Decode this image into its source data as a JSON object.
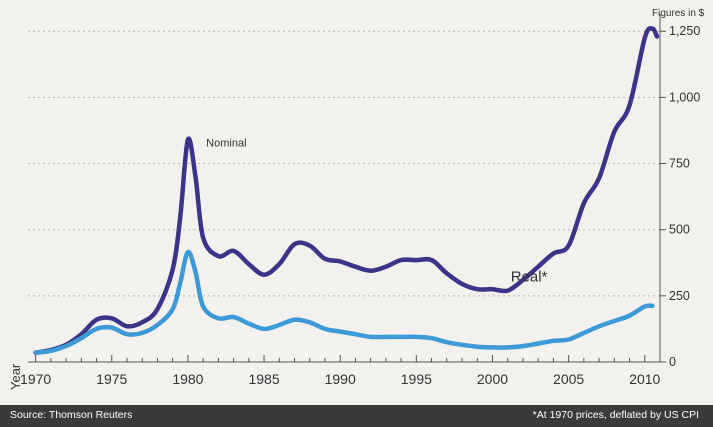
{
  "chart_data": {
    "type": "line",
    "unit_label": "Figures in $",
    "xlabel": "Year",
    "ylabel": "",
    "xlim": [
      1969.5,
      2011
    ],
    "ylim": [
      0,
      1300
    ],
    "x_ticks": [
      1970,
      1975,
      1980,
      1985,
      1990,
      1995,
      2000,
      2005,
      2010
    ],
    "y_ticks": [
      0,
      250,
      500,
      750,
      1000,
      1250
    ],
    "y_tick_labels": [
      "0",
      "250",
      "500",
      "750",
      "1,000",
      "1,250"
    ],
    "grid": "horizontal dotted",
    "series": [
      {
        "name": "Nominal",
        "color": "#3b3488",
        "points": [
          [
            1970,
            35
          ],
          [
            1971,
            45
          ],
          [
            1972,
            65
          ],
          [
            1973,
            105
          ],
          [
            1974,
            160
          ],
          [
            1975,
            165
          ],
          [
            1976,
            135
          ],
          [
            1977,
            150
          ],
          [
            1978,
            200
          ],
          [
            1979,
            350
          ],
          [
            1979.5,
            550
          ],
          [
            1980,
            840
          ],
          [
            1980.5,
            700
          ],
          [
            1981,
            470
          ],
          [
            1982,
            400
          ],
          [
            1983,
            420
          ],
          [
            1984,
            370
          ],
          [
            1985,
            330
          ],
          [
            1986,
            370
          ],
          [
            1987,
            445
          ],
          [
            1988,
            440
          ],
          [
            1989,
            390
          ],
          [
            1990,
            380
          ],
          [
            1991,
            360
          ],
          [
            1992,
            345
          ],
          [
            1993,
            360
          ],
          [
            1994,
            385
          ],
          [
            1995,
            385
          ],
          [
            1996,
            385
          ],
          [
            1997,
            335
          ],
          [
            1998,
            295
          ],
          [
            1999,
            275
          ],
          [
            2000,
            275
          ],
          [
            2001,
            270
          ],
          [
            2002,
            310
          ],
          [
            2003,
            360
          ],
          [
            2004,
            410
          ],
          [
            2005,
            440
          ],
          [
            2006,
            600
          ],
          [
            2007,
            695
          ],
          [
            2008,
            870
          ],
          [
            2009,
            970
          ],
          [
            2010,
            1225
          ],
          [
            2010.5,
            1260
          ],
          [
            2010.8,
            1230
          ]
        ]
      },
      {
        "name": "Real*",
        "color": "#3d9ad6",
        "points": [
          [
            1970,
            35
          ],
          [
            1971,
            42
          ],
          [
            1972,
            60
          ],
          [
            1973,
            90
          ],
          [
            1974,
            125
          ],
          [
            1975,
            130
          ],
          [
            1976,
            105
          ],
          [
            1977,
            110
          ],
          [
            1978,
            140
          ],
          [
            1979,
            200
          ],
          [
            1979.5,
            300
          ],
          [
            1980,
            415
          ],
          [
            1980.5,
            340
          ],
          [
            1981,
            210
          ],
          [
            1982,
            165
          ],
          [
            1983,
            170
          ],
          [
            1984,
            145
          ],
          [
            1985,
            125
          ],
          [
            1986,
            140
          ],
          [
            1987,
            160
          ],
          [
            1988,
            150
          ],
          [
            1989,
            125
          ],
          [
            1990,
            115
          ],
          [
            1991,
            105
          ],
          [
            1992,
            95
          ],
          [
            1993,
            95
          ],
          [
            1994,
            95
          ],
          [
            1995,
            95
          ],
          [
            1996,
            90
          ],
          [
            1997,
            75
          ],
          [
            1998,
            65
          ],
          [
            1999,
            58
          ],
          [
            2000,
            55
          ],
          [
            2001,
            55
          ],
          [
            2002,
            60
          ],
          [
            2003,
            70
          ],
          [
            2004,
            80
          ],
          [
            2005,
            85
          ],
          [
            2006,
            110
          ],
          [
            2007,
            135
          ],
          [
            2008,
            155
          ],
          [
            2009,
            175
          ],
          [
            2010,
            210
          ],
          [
            2010.5,
            212
          ]
        ]
      }
    ]
  },
  "footer": {
    "source": "Source: Thomson Reuters",
    "note": "*At 1970 prices, deflated by US CPI"
  }
}
